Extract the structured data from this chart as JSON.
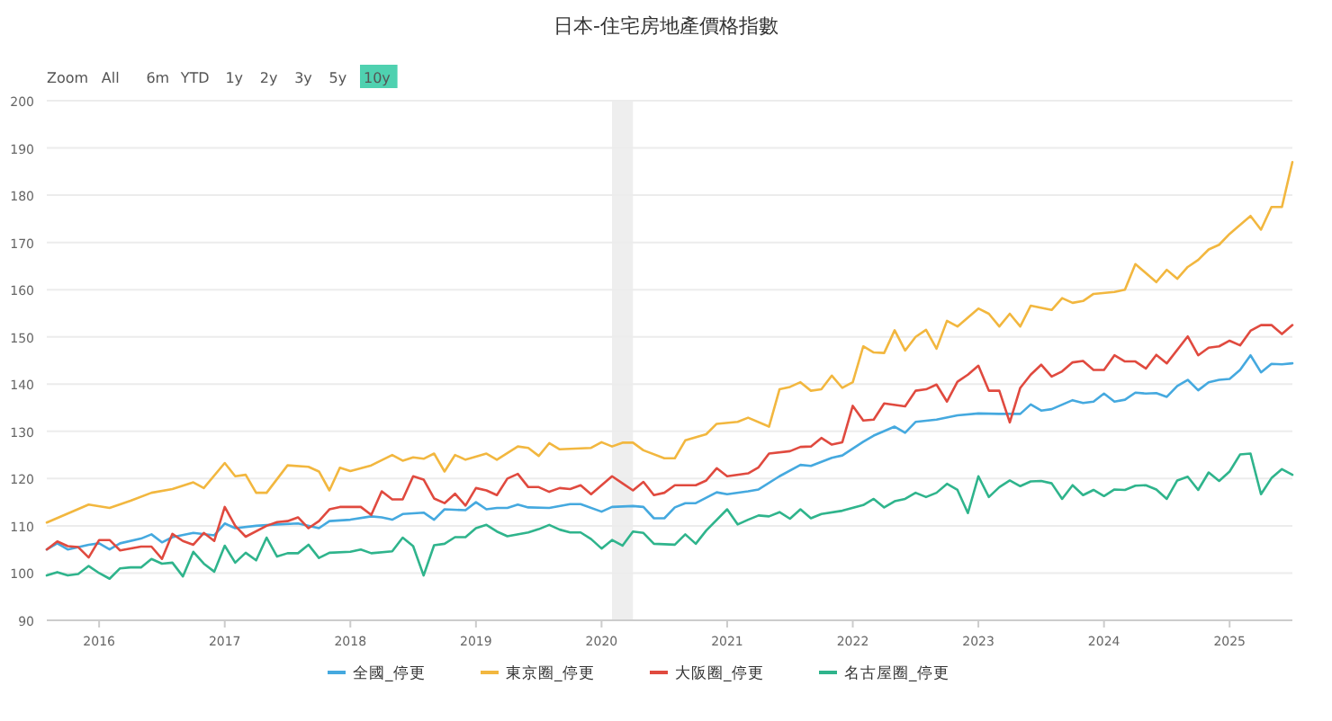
{
  "chart_data": {
    "type": "line",
    "title": "日本-住宅房地產價格指數",
    "annotations": [
      "Zoom",
      "All",
      "6m",
      "YTD",
      "1y",
      "2y",
      "3y",
      "5y",
      "10y"
    ],
    "xlim": [
      "2015-08",
      "2025-07"
    ],
    "xticks": [
      "2016",
      "2017",
      "2018",
      "2019",
      "2020",
      "2021",
      "2022",
      "2023",
      "2024",
      "2025"
    ],
    "ylim": [
      90,
      200
    ],
    "yticks": [
      90,
      100,
      110,
      120,
      130,
      140,
      150,
      160,
      170,
      180,
      190,
      200
    ],
    "grid": "y",
    "legend": "bottom",
    "marker": "none",
    "line_style": "solid",
    "bands": [
      {
        "axis": "x",
        "from": "2020-02",
        "to": "2020-04",
        "color": "#eeeeee"
      }
    ],
    "series": [
      {
        "name": "全國_停更",
        "color": "#45a9df",
        "x": [
          "2015-08",
          "2015-09",
          "2015-10",
          "2015-12",
          "2016-01",
          "2016-02",
          "2016-03",
          "2016-05",
          "2016-06",
          "2016-07",
          "2016-08",
          "2016-10",
          "2016-12",
          "2017-01",
          "2017-02",
          "2017-04",
          "2017-06",
          "2017-08",
          "2017-10",
          "2017-11",
          "2018-01",
          "2018-03",
          "2018-04",
          "2018-05",
          "2018-06",
          "2018-08",
          "2018-09",
          "2018-10",
          "2018-12",
          "2019-01",
          "2019-02",
          "2019-03",
          "2019-04",
          "2019-05",
          "2019-06",
          "2019-08",
          "2019-10",
          "2019-11",
          "2020-01",
          "2020-02",
          "2020-04",
          "2020-05",
          "2020-06",
          "2020-07",
          "2020-08",
          "2020-09",
          "2020-10",
          "2020-12",
          "2021-01",
          "2021-03",
          "2021-04",
          "2021-06",
          "2021-08",
          "2021-09",
          "2021-11",
          "2021-12",
          "2022-02",
          "2022-03",
          "2022-05",
          "2022-06",
          "2022-07",
          "2022-09",
          "2022-11",
          "2023-01",
          "2023-03",
          "2023-05",
          "2023-06",
          "2023-07",
          "2023-08",
          "2023-10",
          "2023-11",
          "2023-12",
          "2024-01",
          "2024-02",
          "2024-03",
          "2024-04",
          "2024-05",
          "2024-06",
          "2024-07",
          "2024-08",
          "2024-09",
          "2024-10",
          "2024-11",
          "2024-12",
          "2025-01",
          "2025-02",
          "2025-03",
          "2025-04",
          "2025-05",
          "2025-06",
          "2025-07"
        ],
        "values": [
          105,
          106.3,
          105,
          106,
          106.3,
          105,
          106.3,
          107.3,
          108.2,
          106.5,
          107.6,
          108.5,
          108,
          110.5,
          109.5,
          110,
          110.3,
          110.5,
          109.5,
          111,
          111.3,
          112,
          111.8,
          111.3,
          112.5,
          112.8,
          111.3,
          113.5,
          113.3,
          115,
          113.5,
          113.8,
          113.8,
          114.5,
          113.9,
          113.8,
          114.6,
          114.6,
          113,
          114,
          114.2,
          114,
          111.6,
          111.6,
          113.9,
          114.8,
          114.8,
          117.1,
          116.7,
          117.3,
          117.7,
          120.5,
          122.9,
          122.7,
          124.4,
          124.9,
          127.8,
          129.1,
          131,
          129.7,
          132,
          132.5,
          133.4,
          133.8,
          133.7,
          133.7,
          135.7,
          134.4,
          134.7,
          136.6,
          136,
          136.3,
          138,
          136.3,
          136.7,
          138.2,
          138,
          138.1,
          137.3,
          139.6,
          140.9,
          138.7,
          140.4,
          140.9,
          141.1,
          143,
          146.1,
          142.5,
          144.3,
          144.2,
          144.4
        ]
      },
      {
        "name": "東京圈_停更",
        "color": "#f2b73f",
        "x": [
          "2015-08",
          "2015-12",
          "2016-02",
          "2016-04",
          "2016-06",
          "2016-08",
          "2016-10",
          "2016-11",
          "2017-01",
          "2017-02",
          "2017-03",
          "2017-04",
          "2017-05",
          "2017-07",
          "2017-09",
          "2017-10",
          "2017-11",
          "2017-12",
          "2018-01",
          "2018-03",
          "2018-05",
          "2018-06",
          "2018-07",
          "2018-08",
          "2018-09",
          "2018-10",
          "2018-11",
          "2018-12",
          "2019-02",
          "2019-03",
          "2019-05",
          "2019-06",
          "2019-07",
          "2019-08",
          "2019-09",
          "2019-12",
          "2020-01",
          "2020-02",
          "2020-03",
          "2020-04",
          "2020-05",
          "2020-07",
          "2020-08",
          "2020-09",
          "2020-11",
          "2020-12",
          "2021-02",
          "2021-03",
          "2021-05",
          "2021-06",
          "2021-07",
          "2021-08",
          "2021-09",
          "2021-10",
          "2021-11",
          "2021-12",
          "2022-01",
          "2022-02",
          "2022-03",
          "2022-04",
          "2022-05",
          "2022-06",
          "2022-07",
          "2022-08",
          "2022-09",
          "2022-10",
          "2022-11",
          "2023-01",
          "2023-02",
          "2023-03",
          "2023-04",
          "2023-05",
          "2023-06",
          "2023-08",
          "2023-09",
          "2023-10",
          "2023-11",
          "2023-12",
          "2024-02",
          "2024-03",
          "2024-04",
          "2024-06",
          "2024-07",
          "2024-08",
          "2024-09",
          "2024-10",
          "2024-11",
          "2024-12",
          "2025-01",
          "2025-03",
          "2025-04",
          "2025-05",
          "2025-06",
          "2025-07"
        ],
        "values": [
          110.7,
          114.5,
          113.8,
          115.3,
          117,
          117.8,
          119.2,
          118,
          123.3,
          120.5,
          120.8,
          117,
          117,
          122.8,
          122.5,
          121.5,
          117.5,
          122.3,
          121.6,
          122.8,
          125,
          123.8,
          124.5,
          124.2,
          125.3,
          121.5,
          125,
          124,
          125.3,
          124,
          126.8,
          126.5,
          124.8,
          127.5,
          126.2,
          126.5,
          127.7,
          126.8,
          127.6,
          127.6,
          126,
          124.3,
          124.3,
          128.1,
          129.4,
          131.6,
          132,
          132.9,
          131,
          138.9,
          139.4,
          140.4,
          138.6,
          138.9,
          141.8,
          139.2,
          140.4,
          148,
          146.7,
          146.6,
          151.4,
          147.1,
          150,
          151.5,
          147.5,
          153.4,
          152.2,
          156,
          154.9,
          152.2,
          154.9,
          152.2,
          156.6,
          155.7,
          158.2,
          157.2,
          157.6,
          159.1,
          159.5,
          160,
          165.4,
          161.6,
          164.2,
          162.3,
          164.8,
          166.3,
          168.5,
          169.5,
          171.8,
          175.6,
          172.7,
          177.5,
          177.5,
          187
        ]
      },
      {
        "name": "大阪圈_停更",
        "color": "#e04a3f",
        "x": [
          "2015-08",
          "2015-09",
          "2015-10",
          "2015-11",
          "2015-12",
          "2016-01",
          "2016-02",
          "2016-03",
          "2016-05",
          "2016-06",
          "2016-07",
          "2016-08",
          "2016-09",
          "2016-10",
          "2016-11",
          "2016-12",
          "2017-01",
          "2017-02",
          "2017-03",
          "2017-05",
          "2017-06",
          "2017-07",
          "2017-08",
          "2017-09",
          "2017-10",
          "2017-11",
          "2017-12",
          "2018-02",
          "2018-03",
          "2018-04",
          "2018-05",
          "2018-06",
          "2018-07",
          "2018-08",
          "2018-09",
          "2018-10",
          "2018-11",
          "2018-12",
          "2019-01",
          "2019-02",
          "2019-03",
          "2019-04",
          "2019-05",
          "2019-06",
          "2019-07",
          "2019-08",
          "2019-09",
          "2019-10",
          "2019-11",
          "2019-12",
          "2020-02",
          "2020-03",
          "2020-04",
          "2020-05",
          "2020-06",
          "2020-07",
          "2020-08",
          "2020-10",
          "2020-11",
          "2020-12",
          "2021-01",
          "2021-03",
          "2021-04",
          "2021-05",
          "2021-07",
          "2021-08",
          "2021-09",
          "2021-10",
          "2021-11",
          "2021-12",
          "2022-01",
          "2022-02",
          "2022-03",
          "2022-04",
          "2022-06",
          "2022-07",
          "2022-08",
          "2022-09",
          "2022-10",
          "2022-11",
          "2022-12",
          "2023-01",
          "2023-02",
          "2023-03",
          "2023-04",
          "2023-05",
          "2023-06",
          "2023-07",
          "2023-08",
          "2023-09",
          "2023-10",
          "2023-11",
          "2023-12",
          "2024-01",
          "2024-02",
          "2024-03",
          "2024-04",
          "2024-05",
          "2024-06",
          "2024-07",
          "2024-09",
          "2024-10",
          "2024-11",
          "2024-12",
          "2025-01",
          "2025-02",
          "2025-03",
          "2025-04",
          "2025-05",
          "2025-06",
          "2025-07"
        ],
        "values": [
          105,
          106.7,
          105.7,
          105.5,
          103.3,
          107,
          107,
          104.8,
          105.6,
          105.6,
          103,
          108.3,
          106.8,
          106,
          108.5,
          106.8,
          114,
          110,
          107.7,
          110,
          110.8,
          111,
          111.8,
          109.5,
          111,
          113.5,
          114,
          114,
          112.3,
          117.3,
          115.6,
          115.6,
          120.5,
          119.8,
          115.8,
          114.8,
          116.8,
          114.3,
          118,
          117.5,
          116.5,
          120,
          121,
          118.2,
          118.2,
          117.2,
          118,
          117.8,
          118.6,
          116.7,
          120.5,
          119,
          117.5,
          119.3,
          116.5,
          117,
          118.6,
          118.6,
          119.6,
          122.2,
          120.5,
          121.1,
          122.4,
          125.3,
          125.8,
          126.7,
          126.8,
          128.6,
          127.2,
          127.7,
          135.4,
          132.3,
          132.5,
          135.9,
          135.3,
          138.6,
          138.9,
          139.9,
          136.3,
          140.5,
          142,
          143.9,
          138.6,
          138.6,
          131.9,
          139.2,
          142,
          144.1,
          141.6,
          142.7,
          144.6,
          144.9,
          143,
          143,
          146.1,
          144.8,
          144.8,
          143.3,
          146.2,
          144.4,
          150.1,
          146.1,
          147.7,
          148,
          149.2,
          148.2,
          151.3,
          152.5,
          152.5,
          150.6,
          152.5
        ]
      },
      {
        "name": "名古屋圈_停更",
        "color": "#2fb48c",
        "x": [
          "2015-08",
          "2015-09",
          "2015-10",
          "2015-11",
          "2015-12",
          "2016-01",
          "2016-02",
          "2016-03",
          "2016-04",
          "2016-05",
          "2016-06",
          "2016-07",
          "2016-08",
          "2016-09",
          "2016-10",
          "2016-11",
          "2016-12",
          "2017-01",
          "2017-02",
          "2017-03",
          "2017-04",
          "2017-05",
          "2017-06",
          "2017-07",
          "2017-08",
          "2017-09",
          "2017-10",
          "2017-11",
          "2018-01",
          "2018-02",
          "2018-03",
          "2018-05",
          "2018-06",
          "2018-07",
          "2018-08",
          "2018-09",
          "2018-10",
          "2018-11",
          "2018-12",
          "2019-01",
          "2019-02",
          "2019-03",
          "2019-04",
          "2019-06",
          "2019-07",
          "2019-08",
          "2019-09",
          "2019-10",
          "2019-11",
          "2019-12",
          "2020-01",
          "2020-02",
          "2020-03",
          "2020-04",
          "2020-05",
          "2020-06",
          "2020-08",
          "2020-09",
          "2020-10",
          "2020-11",
          "2021-01",
          "2021-02",
          "2021-03",
          "2021-04",
          "2021-05",
          "2021-06",
          "2021-07",
          "2021-08",
          "2021-09",
          "2021-10",
          "2021-12",
          "2022-02",
          "2022-03",
          "2022-04",
          "2022-05",
          "2022-06",
          "2022-07",
          "2022-08",
          "2022-09",
          "2022-10",
          "2022-11",
          "2022-12",
          "2023-01",
          "2023-02",
          "2023-03",
          "2023-04",
          "2023-05",
          "2023-06",
          "2023-07",
          "2023-08",
          "2023-09",
          "2023-10",
          "2023-11",
          "2023-12",
          "2024-01",
          "2024-02",
          "2024-03",
          "2024-04",
          "2024-05",
          "2024-06",
          "2024-07",
          "2024-08",
          "2024-09",
          "2024-10",
          "2024-11",
          "2024-12",
          "2025-01",
          "2025-02",
          "2025-03",
          "2025-04",
          "2025-05",
          "2025-06",
          "2025-07"
        ],
        "values": [
          99.5,
          100.2,
          99.5,
          99.8,
          101.5,
          100,
          98.8,
          101,
          101.2,
          101.2,
          103,
          102,
          102.2,
          99.3,
          104.5,
          102,
          100.3,
          105.8,
          102.2,
          104.3,
          102.7,
          107.5,
          103.5,
          104.2,
          104.2,
          106,
          103.2,
          104.3,
          104.5,
          105,
          104.2,
          104.6,
          107.5,
          105.7,
          99.5,
          105.9,
          106.2,
          107.6,
          107.6,
          109.5,
          110.2,
          108.8,
          107.8,
          108.6,
          109.3,
          110.2,
          109.2,
          108.6,
          108.6,
          107.2,
          105.2,
          107,
          105.8,
          108.8,
          108.5,
          106.2,
          106,
          108.2,
          106.2,
          109,
          113.5,
          110.3,
          111.3,
          112.2,
          112,
          112.9,
          111.5,
          113.5,
          111.6,
          112.5,
          113.2,
          114.4,
          115.7,
          113.9,
          115.2,
          115.7,
          117,
          116.1,
          117,
          118.9,
          117.6,
          112.7,
          120.5,
          116.1,
          118.2,
          119.6,
          118.4,
          119.4,
          119.5,
          119,
          115.7,
          118.6,
          116.5,
          117.6,
          116.3,
          117.7,
          117.6,
          118.5,
          118.6,
          117.7,
          115.7,
          119.6,
          120.4,
          117.6,
          121.3,
          119.5,
          121.5,
          125.1,
          125.3,
          116.7,
          120.1,
          122,
          120.8
        ]
      }
    ]
  }
}
